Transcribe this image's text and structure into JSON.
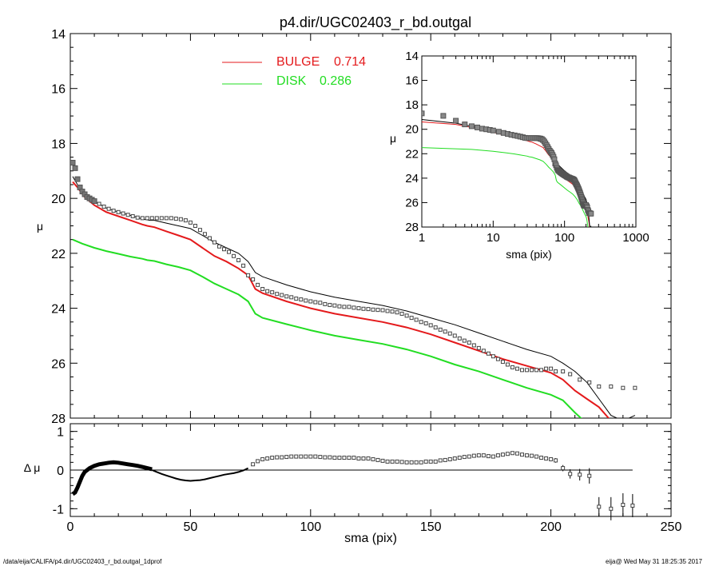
{
  "figure": {
    "title": "p4.dir/UGC02403_r_bd.outgal",
    "footer_left": "/data/eija/CALIFA/p4.dir/UGC02403_r_bd.outgal_1dprof",
    "footer_right": "eija@  Wed May 31 18:25:35 2017"
  },
  "colors": {
    "bulge": "#e41a1c",
    "disk": "#22dd22",
    "model": "#000000",
    "data": "#555555"
  },
  "chart_data": [
    {
      "id": "main",
      "type": "line",
      "title": "p4.dir/UGC02403_r_bd.outgal",
      "xlabel": "",
      "ylabel": "μ",
      "xlim": [
        0,
        250
      ],
      "ylim": [
        28,
        14
      ],
      "yreversed": true,
      "xticks": [
        0,
        50,
        100,
        150,
        200,
        250
      ],
      "yticks": [
        14,
        16,
        18,
        20,
        22,
        24,
        26,
        28
      ],
      "legend": [
        {
          "label": "BULGE",
          "value": "0.714",
          "color": "#e41a1c"
        },
        {
          "label": "DISK",
          "value": "0.286",
          "color": "#22dd22"
        }
      ],
      "series": [
        {
          "name": "BULGE",
          "color": "#e41a1c",
          "x": [
            1,
            3,
            6,
            10,
            15,
            20,
            25,
            30,
            32,
            35,
            40,
            45,
            50,
            55,
            60,
            65,
            70,
            74,
            77,
            80,
            90,
            100,
            110,
            120,
            130,
            140,
            150,
            160,
            170,
            180,
            190,
            200,
            205,
            210,
            215,
            220,
            225
          ],
          "y": [
            19.4,
            19.6,
            19.95,
            20.25,
            20.5,
            20.65,
            20.8,
            20.95,
            21.0,
            21.05,
            21.2,
            21.35,
            21.5,
            21.8,
            22.1,
            22.3,
            22.55,
            22.8,
            23.3,
            23.45,
            23.75,
            24.0,
            24.2,
            24.35,
            24.5,
            24.7,
            24.95,
            25.25,
            25.55,
            25.85,
            26.1,
            26.35,
            26.6,
            27.0,
            27.3,
            27.6,
            28.1
          ]
        },
        {
          "name": "DISK",
          "color": "#22dd22",
          "x": [
            1,
            5,
            10,
            15,
            20,
            25,
            30,
            32,
            35,
            40,
            45,
            50,
            55,
            60,
            65,
            70,
            74,
            77,
            80,
            90,
            100,
            110,
            120,
            130,
            140,
            150,
            160,
            170,
            180,
            190,
            200,
            205,
            210,
            215
          ],
          "y": [
            21.5,
            21.65,
            21.8,
            21.92,
            22.02,
            22.12,
            22.2,
            22.25,
            22.28,
            22.4,
            22.5,
            22.62,
            22.85,
            23.1,
            23.3,
            23.5,
            23.75,
            24.2,
            24.35,
            24.58,
            24.8,
            25.0,
            25.15,
            25.3,
            25.5,
            25.75,
            26.05,
            26.3,
            26.6,
            26.9,
            27.15,
            27.35,
            27.8,
            28.2
          ]
        },
        {
          "name": "",
          "color": "#000000",
          "x": [
            1,
            3,
            6,
            10,
            15,
            20,
            25,
            30,
            33,
            35,
            40,
            45,
            50,
            55,
            60,
            65,
            70,
            74,
            77,
            80,
            90,
            100,
            110,
            120,
            130,
            140,
            150,
            160,
            170,
            180,
            190,
            200,
            205,
            210,
            215,
            220,
            225,
            230,
            235
          ],
          "y": [
            19.2,
            19.5,
            19.85,
            20.1,
            20.35,
            20.5,
            20.62,
            20.75,
            20.8,
            20.8,
            20.9,
            21.0,
            21.1,
            21.35,
            21.6,
            21.8,
            22.0,
            22.3,
            22.7,
            22.85,
            23.15,
            23.4,
            23.6,
            23.75,
            23.9,
            24.1,
            24.35,
            24.6,
            24.9,
            25.2,
            25.5,
            25.75,
            26.0,
            26.3,
            26.7,
            27.3,
            27.9,
            28.1,
            27.9
          ]
        },
        {
          "name": "",
          "color": "#555555",
          "style": "squares",
          "x": [
            1,
            2,
            3,
            4,
            5,
            6,
            7,
            8,
            9,
            10,
            12,
            14,
            16,
            18,
            20,
            22,
            24,
            26,
            28,
            30,
            32,
            34,
            36,
            38,
            40,
            42,
            44,
            46,
            48,
            50,
            52,
            54,
            56,
            58,
            60,
            62,
            64,
            66,
            68,
            70,
            72,
            74,
            76,
            78,
            80,
            82,
            84,
            86,
            88,
            90,
            92,
            94,
            96,
            98,
            100,
            102,
            104,
            106,
            108,
            110,
            112,
            114,
            116,
            118,
            120,
            122,
            124,
            126,
            128,
            130,
            132,
            134,
            136,
            138,
            140,
            142,
            144,
            146,
            148,
            150,
            152,
            154,
            156,
            158,
            160,
            162,
            164,
            166,
            168,
            170,
            172,
            174,
            176,
            178,
            180,
            182,
            184,
            186,
            188,
            190,
            192,
            194,
            196,
            198,
            200,
            202,
            205,
            208,
            212,
            216,
            220,
            225,
            230,
            235
          ],
          "y": [
            18.7,
            18.9,
            19.3,
            19.6,
            19.75,
            19.85,
            19.95,
            20.0,
            20.05,
            20.1,
            20.2,
            20.3,
            20.38,
            20.45,
            20.5,
            20.55,
            20.6,
            20.65,
            20.7,
            20.72,
            20.72,
            20.72,
            20.72,
            20.72,
            20.72,
            20.72,
            20.74,
            20.76,
            20.8,
            20.88,
            21.0,
            21.15,
            21.3,
            21.45,
            21.6,
            21.75,
            21.85,
            21.95,
            22.1,
            22.25,
            22.45,
            22.8,
            22.95,
            23.15,
            23.3,
            23.38,
            23.42,
            23.48,
            23.52,
            23.57,
            23.6,
            23.65,
            23.68,
            23.72,
            23.75,
            23.78,
            23.8,
            23.85,
            23.88,
            23.9,
            23.93,
            23.95,
            23.95,
            23.98,
            24.0,
            24.02,
            24.03,
            24.05,
            24.06,
            24.07,
            24.1,
            24.12,
            24.15,
            24.2,
            24.27,
            24.35,
            24.42,
            24.5,
            24.55,
            24.62,
            24.7,
            24.78,
            24.85,
            24.92,
            25.0,
            25.1,
            25.18,
            25.25,
            25.35,
            25.45,
            25.55,
            25.65,
            25.75,
            25.85,
            25.95,
            26.05,
            26.15,
            26.2,
            26.25,
            26.25,
            26.25,
            26.25,
            26.25,
            26.2,
            26.2,
            26.3,
            26.3,
            26.4,
            26.6,
            26.7,
            26.85,
            26.85,
            26.9,
            26.9
          ]
        }
      ]
    },
    {
      "id": "residual",
      "type": "scatter",
      "xlabel": "sma (pix)",
      "ylabel": "Δ μ",
      "xlim": [
        0,
        250
      ],
      "ylim": [
        -1.2,
        1.2
      ],
      "xticks": [
        0,
        50,
        100,
        150,
        200,
        250
      ],
      "yticks": [
        1,
        0,
        -1
      ],
      "series": [
        {
          "name": "",
          "color": "#000000",
          "style": "thick-line",
          "x": [
            1,
            2,
            3,
            4,
            5,
            6,
            8,
            10,
            12,
            14,
            16,
            18,
            20,
            22,
            24,
            26,
            28,
            30,
            32,
            34
          ],
          "y": [
            -0.62,
            -0.58,
            -0.45,
            -0.3,
            -0.15,
            -0.05,
            0.05,
            0.11,
            0.15,
            0.17,
            0.19,
            0.2,
            0.19,
            0.17,
            0.15,
            0.13,
            0.11,
            0.08,
            0.05,
            0.02
          ]
        },
        {
          "name": "",
          "color": "#000000",
          "style": "thin-line",
          "x": [
            34,
            36,
            38,
            40,
            42,
            44,
            46,
            48,
            50,
            52,
            54,
            56,
            58,
            60,
            62,
            64,
            66,
            68,
            70,
            72,
            74
          ],
          "y": [
            0.0,
            -0.05,
            -0.1,
            -0.14,
            -0.18,
            -0.22,
            -0.25,
            -0.27,
            -0.28,
            -0.27,
            -0.26,
            -0.24,
            -0.21,
            -0.18,
            -0.15,
            -0.12,
            -0.1,
            -0.08,
            -0.05,
            -0.01,
            0.05
          ]
        },
        {
          "name": "",
          "color": "#555555",
          "style": "squares",
          "x": [
            76,
            78,
            80,
            82,
            84,
            86,
            88,
            90,
            92,
            94,
            96,
            98,
            100,
            102,
            104,
            106,
            108,
            110,
            112,
            114,
            116,
            118,
            120,
            122,
            124,
            126,
            128,
            130,
            132,
            134,
            136,
            138,
            140,
            142,
            144,
            146,
            148,
            150,
            152,
            154,
            156,
            158,
            160,
            162,
            164,
            166,
            168,
            170,
            172,
            174,
            176,
            178,
            180,
            182,
            184,
            186,
            188,
            190,
            192,
            194,
            196,
            198,
            200,
            202,
            205,
            208,
            212,
            216,
            220,
            225,
            230,
            234
          ],
          "y": [
            0.15,
            0.23,
            0.28,
            0.3,
            0.32,
            0.33,
            0.33,
            0.34,
            0.35,
            0.35,
            0.35,
            0.35,
            0.35,
            0.35,
            0.34,
            0.33,
            0.33,
            0.32,
            0.32,
            0.32,
            0.32,
            0.32,
            0.3,
            0.3,
            0.3,
            0.28,
            0.26,
            0.24,
            0.22,
            0.22,
            0.22,
            0.21,
            0.2,
            0.2,
            0.2,
            0.2,
            0.22,
            0.22,
            0.22,
            0.25,
            0.26,
            0.28,
            0.3,
            0.32,
            0.34,
            0.35,
            0.37,
            0.38,
            0.38,
            0.36,
            0.35,
            0.38,
            0.4,
            0.42,
            0.44,
            0.43,
            0.4,
            0.38,
            0.37,
            0.35,
            0.32,
            0.3,
            0.28,
            0.25,
            0.05,
            -0.1,
            -0.12,
            -0.15,
            -0.95,
            -1.0,
            -0.9,
            -0.92
          ],
          "err": [
            0,
            0,
            0,
            0,
            0,
            0,
            0,
            0,
            0,
            0,
            0,
            0,
            0,
            0,
            0,
            0,
            0,
            0,
            0,
            0,
            0,
            0,
            0,
            0,
            0,
            0,
            0,
            0,
            0,
            0,
            0,
            0,
            0,
            0,
            0,
            0,
            0,
            0,
            0,
            0,
            0,
            0,
            0,
            0,
            0,
            0,
            0,
            0,
            0,
            0,
            0,
            0,
            0,
            0,
            0,
            0,
            0,
            0,
            0,
            0,
            0.05,
            0.05,
            0.05,
            0.06,
            0.08,
            0.12,
            0.15,
            0.2,
            0.25,
            0.3,
            0.3,
            0.3
          ]
        }
      ]
    },
    {
      "id": "inset",
      "type": "line",
      "xlabel": "sma (pix)",
      "ylabel": "μ",
      "xscale": "log",
      "xlim": [
        1,
        1000
      ],
      "ylim": [
        28,
        14
      ],
      "xticks": [
        1,
        10,
        100,
        1000
      ],
      "yticks": [
        14,
        16,
        18,
        20,
        22,
        24,
        26,
        28
      ]
    }
  ]
}
